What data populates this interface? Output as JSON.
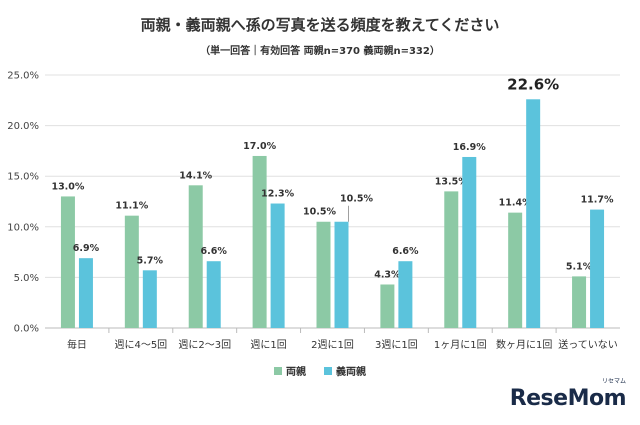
{
  "title": "両親・義両親へ孫の写真を送る頻度を教えてください",
  "subtitle": "（単一回答｜有効回答 両親n=370 義両親n=332）",
  "logo": "ReseMom",
  "logo_ruby": "リセマム",
  "colors": {
    "parents": "#8cc9a5",
    "in_laws": "#5bc3dc",
    "axis": "#bbbbbb",
    "grid": "#e0e0e0"
  },
  "chart_data": {
    "type": "bar",
    "title": "両親・義両親へ孫の写真を送る頻度を教えてください",
    "subtitle": "（単一回答｜有効回答 両親n=370 義両親n=332）",
    "categories": [
      "毎日",
      "週に4～5回",
      "週に2～3回",
      "週に1回",
      "2週に1回",
      "3週に1回",
      "1ヶ月に1回",
      "数ヶ月に1回",
      "送っていない"
    ],
    "series": [
      {
        "name": "両親",
        "values": [
          13.0,
          11.1,
          14.1,
          17.0,
          10.5,
          4.3,
          13.5,
          11.4,
          5.1
        ],
        "labels": [
          "13.0%",
          "11.1%",
          "14.1%",
          "17.0%",
          "10.5%",
          "4.3%",
          "13.5%",
          "11.4%",
          "5.1%"
        ]
      },
      {
        "name": "義両親",
        "values": [
          6.9,
          5.7,
          6.6,
          12.3,
          10.5,
          6.6,
          16.9,
          22.6,
          11.7
        ],
        "labels": [
          "6.9%",
          "5.7%",
          "6.6%",
          "12.3%",
          "10.5%",
          "6.6%",
          "16.9%",
          "22.6%",
          "11.7%"
        ]
      }
    ],
    "ylim": [
      0,
      25
    ],
    "yticks": [
      "0.0%",
      "5.0%",
      "10.0%",
      "15.0%",
      "20.0%",
      "25.0%"
    ],
    "grid": true,
    "legend_position": "bottom-center",
    "highlight_label": "22.6%"
  }
}
